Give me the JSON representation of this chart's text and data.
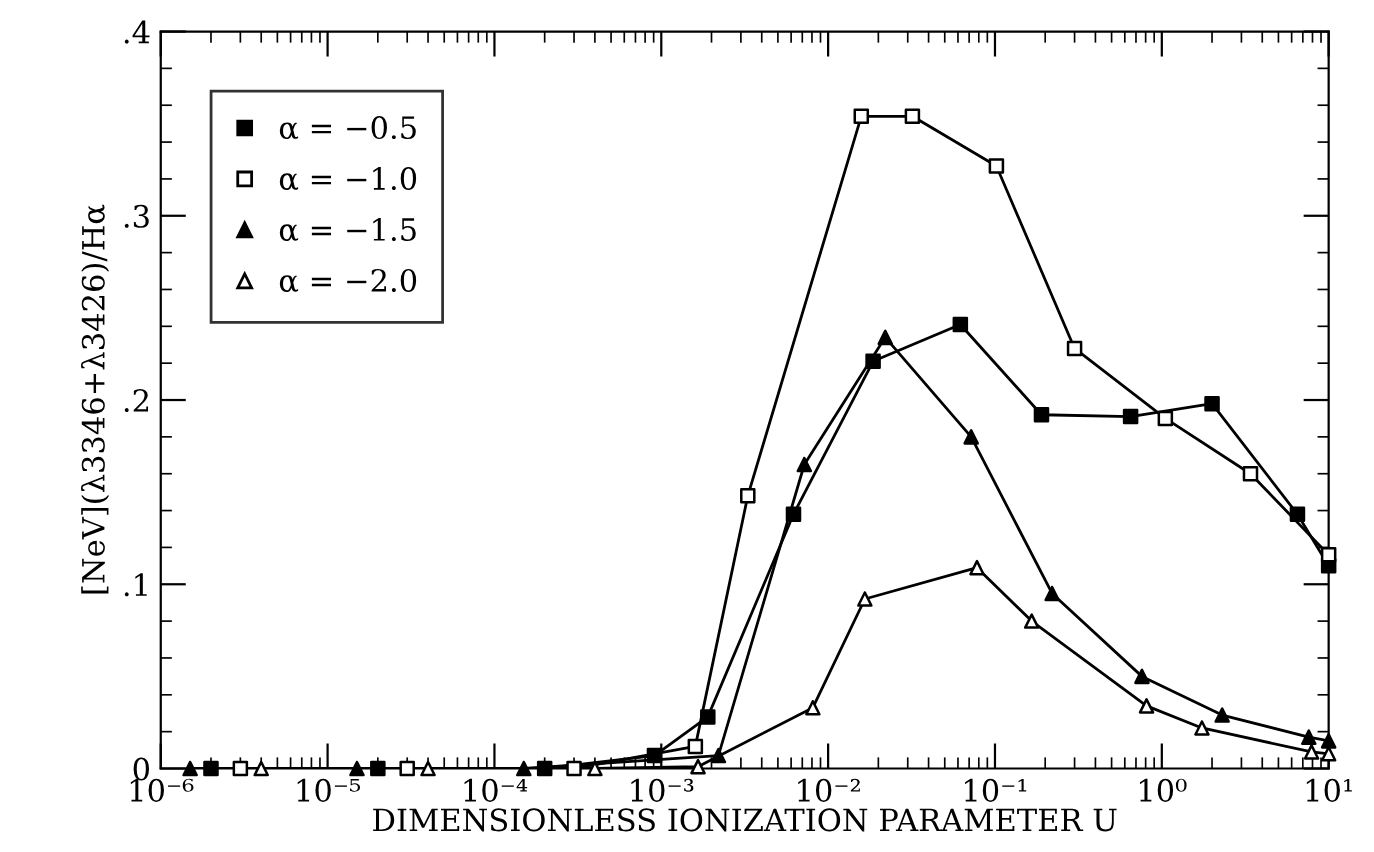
{
  "chart_data": {
    "type": "line",
    "xlabel": "DIMENSIONLESS IONIZATION PARAMETER U",
    "ylabel": "[NeV](λ3346+λ3426)/Hα",
    "log": "x",
    "xlim": [
      1e-06,
      10
    ],
    "ylim": [
      0,
      0.4
    ],
    "xticks": [
      {
        "value": 1e-06,
        "label": "10⁻⁶"
      },
      {
        "value": 1e-05,
        "label": "10⁻⁵"
      },
      {
        "value": 0.0001,
        "label": "10⁻⁴"
      },
      {
        "value": 0.001,
        "label": "10⁻³"
      },
      {
        "value": 0.01,
        "label": "10⁻²"
      },
      {
        "value": 0.1,
        "label": "10⁻¹"
      },
      {
        "value": 1,
        "label": "10⁰"
      },
      {
        "value": 10,
        "label": "10¹"
      }
    ],
    "yticks": [
      {
        "value": 0,
        "label": "0"
      },
      {
        "value": 0.1,
        "label": ".1"
      },
      {
        "value": 0.2,
        "label": ".2"
      },
      {
        "value": 0.3,
        "label": ".3"
      },
      {
        "value": 0.4,
        "label": ".4"
      }
    ],
    "grid": false,
    "legend": "top left",
    "series": [
      {
        "name": "α = −0.5",
        "color": "#000000",
        "marker": "square",
        "x": [
          2e-06,
          2e-05,
          0.0002,
          0.00091,
          0.0019,
          0.0062,
          0.0186,
          0.062,
          0.19,
          0.65,
          2.0,
          6.5,
          10
        ],
        "values": [
          0,
          0,
          0,
          0.007,
          0.028,
          0.138,
          0.221,
          0.241,
          0.192,
          0.191,
          0.198,
          0.138,
          0.11
        ]
      },
      {
        "name": "α = −1.0",
        "color": "#000000",
        "marker": "square",
        "x": [
          3e-06,
          3e-05,
          0.0003,
          0.0016,
          0.0033,
          0.0158,
          0.032,
          0.102,
          0.3,
          1.05,
          3.4,
          10
        ],
        "values": [
          0,
          0,
          0,
          0.012,
          0.148,
          0.354,
          0.354,
          0.327,
          0.228,
          0.19,
          0.16,
          0.116
        ]
      },
      {
        "name": "α = −1.5",
        "color": "#000000",
        "marker": "triangle",
        "x": [
          1.5e-06,
          1.5e-05,
          0.00015,
          0.0022,
          0.0072,
          0.022,
          0.072,
          0.22,
          0.76,
          2.3,
          7.6,
          10
        ],
        "values": [
          0,
          0,
          0,
          0.007,
          0.165,
          0.234,
          0.18,
          0.095,
          0.05,
          0.029,
          0.017,
          0.015
        ]
      },
      {
        "name": "α = −2.0",
        "color": "#000000",
        "marker": "triangle",
        "x": [
          4e-06,
          4e-05,
          0.0004,
          0.00166,
          0.0081,
          0.0166,
          0.078,
          0.166,
          0.81,
          1.74,
          7.9,
          10
        ],
        "values": [
          0,
          0,
          0,
          0.001,
          0.033,
          0.092,
          0.109,
          0.08,
          0.034,
          0.022,
          0.009,
          0.008
        ]
      }
    ]
  }
}
